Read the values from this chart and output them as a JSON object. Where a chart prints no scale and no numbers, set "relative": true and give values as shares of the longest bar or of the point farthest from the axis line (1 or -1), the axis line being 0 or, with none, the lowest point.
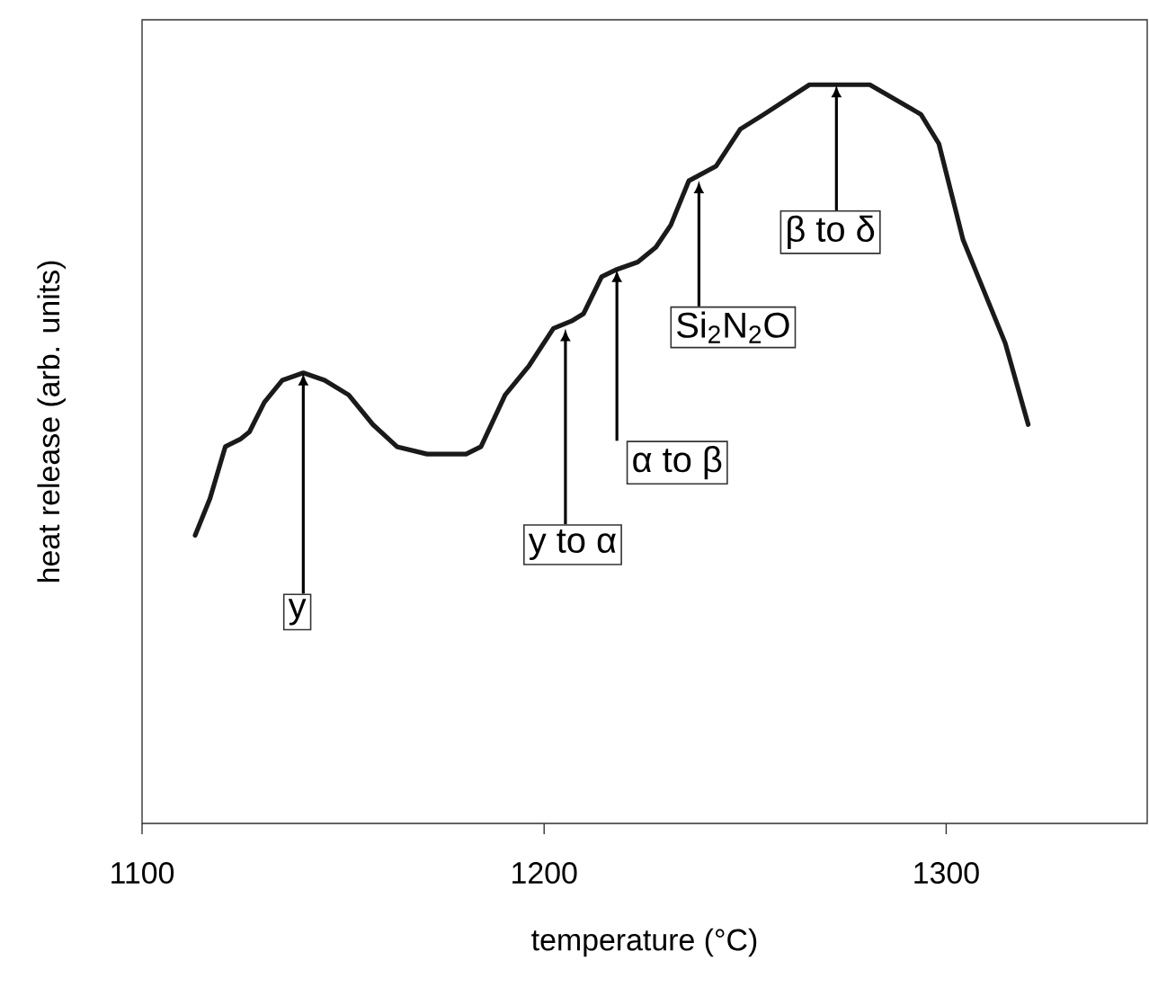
{
  "chart_data": {
    "type": "line",
    "relative": true,
    "xlabel": "temperature (°C)",
    "ylabel": "heat release (arb. units)",
    "xlim": [
      1100,
      1350
    ],
    "xticks": [
      1100,
      1200,
      1300
    ],
    "color": "#1a1a1a",
    "x": [
      1113.2,
      1116.9,
      1120.7,
      1124.4,
      1126.7,
      1130.4,
      1134.9,
      1140.1,
      1145.4,
      1151.4,
      1157.4,
      1163.4,
      1170.9,
      1180.6,
      1184.3,
      1190.3,
      1196.3,
      1202.3,
      1206.8,
      1209.8,
      1214.3,
      1218.1,
      1223.3,
      1227.8,
      1231.5,
      1236,
      1242.8,
      1248.8,
      1254.7,
      1266,
      1281,
      1293.7,
      1298.2,
      1304.2,
      1308.7,
      1314.7,
      1320.4
    ],
    "values": [
      0.39,
      0.44,
      0.51,
      0.52,
      0.53,
      0.57,
      0.6,
      0.61,
      0.6,
      0.58,
      0.54,
      0.51,
      0.5,
      0.5,
      0.51,
      0.58,
      0.62,
      0.67,
      0.68,
      0.69,
      0.74,
      0.75,
      0.76,
      0.78,
      0.81,
      0.87,
      0.89,
      0.94,
      0.96,
      1,
      1,
      0.96,
      0.92,
      0.79,
      0.73,
      0.65,
      0.54
    ],
    "annotations": [
      {
        "text": "y",
        "x": 1140.1,
        "y": 0.61
      },
      {
        "text": "y to α",
        "x": 1205.3,
        "y": 0.67
      },
      {
        "text": "α to β",
        "x": 1218.1,
        "y": 0.75
      },
      {
        "text": "Si$_{2}$N$_{2}$O",
        "x": 1238.5,
        "y": 0.87
      },
      {
        "text": "β to δ",
        "x": 1272.7,
        "y": 1
      }
    ]
  }
}
